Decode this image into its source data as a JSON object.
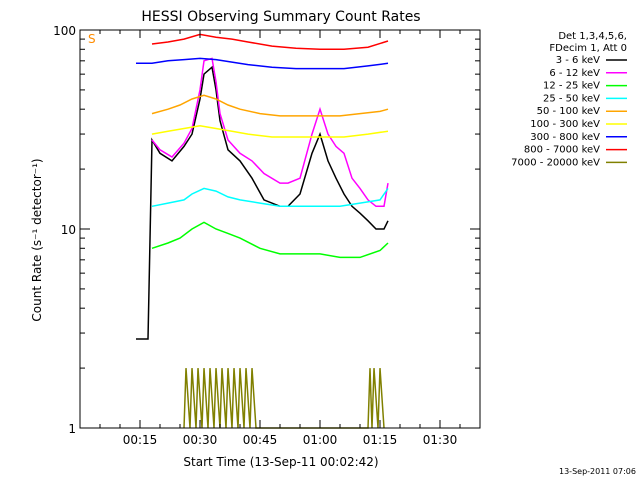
{
  "chart_data": {
    "type": "line",
    "title": "HESSI Observing Summary Count Rates",
    "xlabel": "Start Time (13-Sep-11 00:02:42)",
    "ylabel": "Count Rate (s⁻¹ detector⁻¹)",
    "y_scale": "log",
    "ylim": [
      1,
      100
    ],
    "xlim_minutes": [
      0,
      100
    ],
    "x_ticks": [
      {
        "minute": 15,
        "label": "00:15"
      },
      {
        "minute": 30,
        "label": "00:30"
      },
      {
        "minute": 45,
        "label": "00:45"
      },
      {
        "minute": 60,
        "label": "01:00"
      },
      {
        "minute": 75,
        "label": "01:15"
      },
      {
        "minute": 90,
        "label": "01:30"
      }
    ],
    "y_ticks": [
      {
        "value": 1,
        "label": "1"
      },
      {
        "value": 10,
        "label": "10"
      },
      {
        "value": 100,
        "label": "100"
      }
    ],
    "legend_header": [
      "Det 1,3,4,5,6,",
      "FDecim 1, Att 0"
    ],
    "legend_position": "right",
    "series": [
      {
        "name": "3 - 6 keV",
        "color": "#000000",
        "points": [
          [
            14,
            2.8
          ],
          [
            17,
            2.8
          ],
          [
            18,
            28
          ],
          [
            20,
            24
          ],
          [
            23,
            22
          ],
          [
            26,
            26
          ],
          [
            28,
            30
          ],
          [
            30,
            45
          ],
          [
            31,
            60
          ],
          [
            33,
            65
          ],
          [
            34,
            50
          ],
          [
            35,
            35
          ],
          [
            37,
            25
          ],
          [
            40,
            22
          ],
          [
            43,
            18
          ],
          [
            46,
            14
          ],
          [
            50,
            13
          ],
          [
            52,
            13
          ],
          [
            55,
            15
          ],
          [
            58,
            24
          ],
          [
            60,
            30
          ],
          [
            62,
            22
          ],
          [
            64,
            18
          ],
          [
            66,
            15
          ],
          [
            68,
            13
          ],
          [
            70,
            12
          ],
          [
            72,
            11
          ],
          [
            74,
            10
          ],
          [
            76,
            10
          ],
          [
            77,
            11
          ]
        ]
      },
      {
        "name": "6 - 12 keV",
        "color": "#ff00ff",
        "points": [
          [
            18,
            28
          ],
          [
            20,
            25
          ],
          [
            23,
            23
          ],
          [
            26,
            27
          ],
          [
            28,
            32
          ],
          [
            30,
            50
          ],
          [
            31,
            70
          ],
          [
            33,
            72
          ],
          [
            34,
            55
          ],
          [
            35,
            38
          ],
          [
            37,
            28
          ],
          [
            40,
            24
          ],
          [
            43,
            22
          ],
          [
            46,
            19
          ],
          [
            50,
            17
          ],
          [
            52,
            17
          ],
          [
            55,
            18
          ],
          [
            58,
            30
          ],
          [
            60,
            40
          ],
          [
            62,
            30
          ],
          [
            64,
            26
          ],
          [
            66,
            24
          ],
          [
            68,
            18
          ],
          [
            70,
            16
          ],
          [
            72,
            14
          ],
          [
            74,
            13
          ],
          [
            76,
            13
          ],
          [
            77,
            17
          ]
        ]
      },
      {
        "name": "12 - 25 keV",
        "color": "#00ff00",
        "points": [
          [
            18,
            8
          ],
          [
            22,
            8.5
          ],
          [
            25,
            9
          ],
          [
            28,
            10
          ],
          [
            31,
            10.8
          ],
          [
            34,
            10
          ],
          [
            37,
            9.5
          ],
          [
            40,
            9
          ],
          [
            45,
            8
          ],
          [
            50,
            7.5
          ],
          [
            55,
            7.5
          ],
          [
            60,
            7.5
          ],
          [
            65,
            7.2
          ],
          [
            70,
            7.2
          ],
          [
            75,
            7.8
          ],
          [
            77,
            8.5
          ]
        ]
      },
      {
        "name": "25 - 50 keV",
        "color": "#00ffff",
        "points": [
          [
            18,
            13
          ],
          [
            22,
            13.5
          ],
          [
            26,
            14
          ],
          [
            28,
            15
          ],
          [
            31,
            16
          ],
          [
            34,
            15.5
          ],
          [
            37,
            14.5
          ],
          [
            40,
            14
          ],
          [
            45,
            13.5
          ],
          [
            50,
            13
          ],
          [
            55,
            13
          ],
          [
            60,
            13
          ],
          [
            65,
            13
          ],
          [
            70,
            13.5
          ],
          [
            75,
            14
          ],
          [
            77,
            16
          ]
        ]
      },
      {
        "name": "50 - 100 keV",
        "color": "#ffa500",
        "points": [
          [
            18,
            38
          ],
          [
            22,
            40
          ],
          [
            25,
            42
          ],
          [
            28,
            45
          ],
          [
            31,
            47
          ],
          [
            34,
            45
          ],
          [
            37,
            42
          ],
          [
            40,
            40
          ],
          [
            45,
            38
          ],
          [
            50,
            37
          ],
          [
            55,
            37
          ],
          [
            60,
            37
          ],
          [
            65,
            37
          ],
          [
            70,
            38
          ],
          [
            75,
            39
          ],
          [
            77,
            40
          ]
        ]
      },
      {
        "name": "100 - 300 keV",
        "color": "#ffff00",
        "points": [
          [
            18,
            30
          ],
          [
            22,
            31
          ],
          [
            26,
            32
          ],
          [
            30,
            33
          ],
          [
            34,
            32
          ],
          [
            38,
            31
          ],
          [
            42,
            30
          ],
          [
            48,
            29
          ],
          [
            54,
            29
          ],
          [
            60,
            29
          ],
          [
            66,
            29
          ],
          [
            72,
            30
          ],
          [
            77,
            31
          ]
        ]
      },
      {
        "name": "300 - 800 keV",
        "color": "#0000ff",
        "points": [
          [
            14,
            68
          ],
          [
            18,
            68
          ],
          [
            22,
            70
          ],
          [
            26,
            71
          ],
          [
            30,
            72
          ],
          [
            34,
            71
          ],
          [
            38,
            69
          ],
          [
            42,
            67
          ],
          [
            48,
            65
          ],
          [
            54,
            64
          ],
          [
            60,
            64
          ],
          [
            66,
            64
          ],
          [
            72,
            66
          ],
          [
            77,
            68
          ]
        ]
      },
      {
        "name": "800 - 7000 keV",
        "color": "#ff0000",
        "points": [
          [
            18,
            85
          ],
          [
            22,
            87
          ],
          [
            26,
            90
          ],
          [
            30,
            95
          ],
          [
            34,
            92
          ],
          [
            38,
            90
          ],
          [
            42,
            87
          ],
          [
            48,
            83
          ],
          [
            54,
            81
          ],
          [
            60,
            80
          ],
          [
            66,
            80
          ],
          [
            72,
            82
          ],
          [
            77,
            88
          ]
        ]
      },
      {
        "name": "7000 - 20000 keV",
        "color": "#808000",
        "points": [
          [
            26,
            1
          ],
          [
            26.5,
            2
          ],
          [
            27.5,
            1
          ],
          [
            28,
            2
          ],
          [
            29,
            1
          ],
          [
            29.5,
            2
          ],
          [
            30.5,
            1
          ],
          [
            31,
            2
          ],
          [
            32,
            1
          ],
          [
            32.5,
            2
          ],
          [
            33.5,
            1
          ],
          [
            34,
            2
          ],
          [
            35,
            1
          ],
          [
            35.5,
            2
          ],
          [
            36.5,
            1
          ],
          [
            37,
            2
          ],
          [
            38,
            1
          ],
          [
            38.5,
            2
          ],
          [
            39.5,
            1
          ],
          [
            40,
            2
          ],
          [
            41,
            1
          ],
          [
            41.5,
            2
          ],
          [
            42.5,
            1
          ],
          [
            43,
            2
          ],
          [
            44,
            1
          ],
          [
            72,
            1
          ],
          [
            72.5,
            2
          ],
          [
            73,
            1
          ],
          [
            73.5,
            2
          ],
          [
            74.5,
            1
          ],
          [
            75,
            2
          ],
          [
            76,
            1
          ]
        ]
      }
    ],
    "timestamp": "13-Sep-2011 07:06",
    "corner_marker": "S"
  }
}
